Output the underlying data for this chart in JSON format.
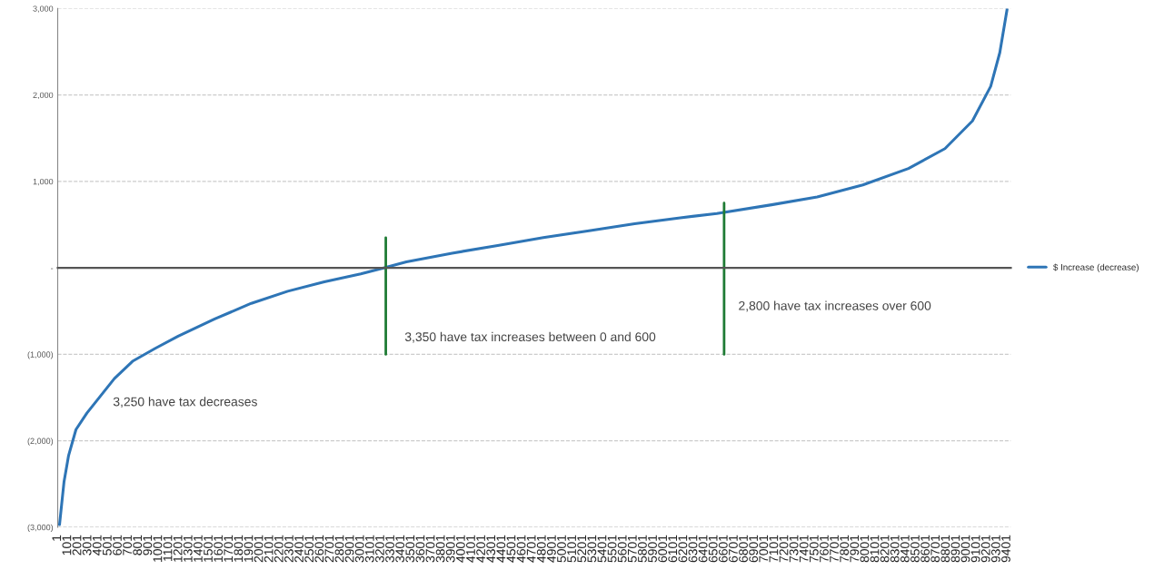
{
  "chart_data": {
    "type": "line",
    "xlim": [
      1,
      9440
    ],
    "ylim": [
      -3000,
      3000
    ],
    "xticks": [
      1,
      101,
      201,
      301,
      401,
      501,
      601,
      701,
      801,
      901,
      1001,
      1101,
      1201,
      1301,
      1401,
      1501,
      1601,
      1701,
      1801,
      1901,
      2001,
      2101,
      2201,
      2301,
      2401,
      2501,
      2601,
      2701,
      2801,
      2901,
      3001,
      3101,
      3201,
      3301,
      3401,
      3501,
      3601,
      3701,
      3801,
      3901,
      4001,
      4101,
      4201,
      4301,
      4401,
      4501,
      4601,
      4701,
      4801,
      4901,
      5001,
      5101,
      5201,
      5301,
      5401,
      5501,
      5601,
      5701,
      5801,
      5901,
      6001,
      6101,
      6201,
      6301,
      6401,
      6501,
      6601,
      6701,
      6801,
      6901,
      7001,
      7101,
      7201,
      7301,
      7401,
      7501,
      7601,
      7701,
      7801,
      7901,
      8001,
      8101,
      8201,
      8301,
      8401,
      8501,
      8601,
      8701,
      8801,
      8901,
      9001,
      9101,
      9201,
      9301,
      9401
    ],
    "yticks": [
      {
        "value": -3000,
        "label": "(3,000)"
      },
      {
        "value": -2000,
        "label": "(2,000)"
      },
      {
        "value": -1000,
        "label": "(1,000)"
      },
      {
        "value": 0,
        "label": "-"
      },
      {
        "value": 1000,
        "label": "1,000"
      },
      {
        "value": 2000,
        "label": "2,000"
      },
      {
        "value": 3000,
        "label": "3,000"
      }
    ],
    "grid": "y",
    "legend": "right",
    "series": [
      {
        "name": "$ Increase (decrease)",
        "color": "#2e75b6",
        "x": [
          19,
          64,
          109,
          182,
          290,
          426,
          562,
          742,
          968,
          1194,
          1556,
          1918,
          2279,
          2641,
          3002,
          3228,
          3454,
          3906,
          4358,
          4810,
          5262,
          5714,
          6166,
          6528,
          7070,
          7522,
          7974,
          8426,
          8787,
          9059,
          9240,
          9330,
          9402
        ],
        "values": [
          -2970,
          -2470,
          -2170,
          -1870,
          -1680,
          -1480,
          -1280,
          -1080,
          -930,
          -790,
          -590,
          -410,
          -270,
          -160,
          -70,
          0,
          70,
          170,
          260,
          350,
          430,
          510,
          580,
          630,
          730,
          820,
          960,
          1150,
          1380,
          1700,
          2100,
          2490,
          2990
        ]
      },
      {
        "type": "line",
        "color": "#1e7b34",
        "x": [
          3250,
          3250
        ],
        "values": [
          350,
          -1000
        ]
      },
      {
        "type": "line",
        "color": "#1e7b34",
        "x": [
          6600,
          6600
        ],
        "values": [
          750,
          -1000
        ]
      }
    ],
    "annotations": [
      "3,250 have tax decreases",
      "3,350 have tax increases between 0 and 600",
      "2,800 have tax increases over 600"
    ]
  }
}
